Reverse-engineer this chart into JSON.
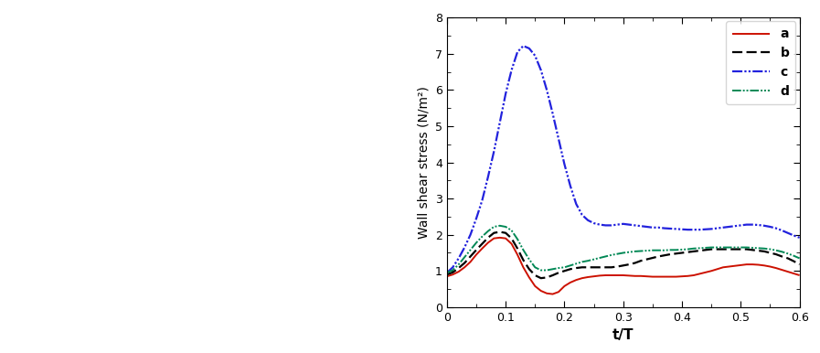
{
  "title": "",
  "xlabel": "t/T",
  "ylabel": "Wall shear stress (N/m²)",
  "xlim": [
    0,
    0.6
  ],
  "ylim": [
    0,
    8
  ],
  "xticks": [
    0,
    0.1,
    0.2,
    0.3,
    0.4,
    0.5,
    0.6
  ],
  "yticks": [
    0,
    1,
    2,
    3,
    4,
    5,
    6,
    7,
    8
  ],
  "series": {
    "a": {
      "color": "#cc1100",
      "linewidth": 1.4,
      "x": [
        0.0,
        0.01,
        0.02,
        0.03,
        0.04,
        0.05,
        0.06,
        0.07,
        0.08,
        0.09,
        0.1,
        0.11,
        0.12,
        0.13,
        0.14,
        0.15,
        0.16,
        0.17,
        0.18,
        0.19,
        0.2,
        0.21,
        0.22,
        0.23,
        0.24,
        0.25,
        0.26,
        0.27,
        0.28,
        0.29,
        0.3,
        0.31,
        0.32,
        0.33,
        0.34,
        0.35,
        0.36,
        0.37,
        0.38,
        0.39,
        0.4,
        0.41,
        0.42,
        0.43,
        0.44,
        0.45,
        0.46,
        0.47,
        0.48,
        0.49,
        0.5,
        0.51,
        0.52,
        0.53,
        0.54,
        0.55,
        0.56,
        0.57,
        0.58,
        0.59,
        0.6
      ],
      "y": [
        0.85,
        0.9,
        0.98,
        1.1,
        1.25,
        1.45,
        1.62,
        1.78,
        1.9,
        1.92,
        1.9,
        1.75,
        1.45,
        1.1,
        0.82,
        0.58,
        0.45,
        0.38,
        0.36,
        0.42,
        0.58,
        0.68,
        0.75,
        0.8,
        0.83,
        0.85,
        0.87,
        0.88,
        0.88,
        0.88,
        0.88,
        0.87,
        0.86,
        0.86,
        0.85,
        0.84,
        0.84,
        0.84,
        0.84,
        0.84,
        0.85,
        0.86,
        0.88,
        0.92,
        0.96,
        1.0,
        1.05,
        1.1,
        1.12,
        1.14,
        1.16,
        1.18,
        1.18,
        1.17,
        1.15,
        1.12,
        1.08,
        1.03,
        0.98,
        0.93,
        0.88
      ]
    },
    "b": {
      "color": "#000000",
      "linewidth": 1.6,
      "x": [
        0.0,
        0.01,
        0.02,
        0.03,
        0.04,
        0.05,
        0.06,
        0.07,
        0.08,
        0.09,
        0.1,
        0.11,
        0.12,
        0.13,
        0.14,
        0.15,
        0.16,
        0.17,
        0.18,
        0.19,
        0.2,
        0.21,
        0.22,
        0.23,
        0.24,
        0.25,
        0.26,
        0.27,
        0.28,
        0.29,
        0.3,
        0.31,
        0.32,
        0.33,
        0.34,
        0.35,
        0.36,
        0.37,
        0.38,
        0.39,
        0.4,
        0.41,
        0.42,
        0.43,
        0.44,
        0.45,
        0.46,
        0.47,
        0.48,
        0.49,
        0.5,
        0.51,
        0.52,
        0.53,
        0.54,
        0.55,
        0.56,
        0.57,
        0.58,
        0.59,
        0.6
      ],
      "y": [
        0.9,
        0.96,
        1.08,
        1.22,
        1.4,
        1.58,
        1.75,
        1.92,
        2.05,
        2.08,
        2.05,
        1.9,
        1.62,
        1.3,
        1.05,
        0.88,
        0.8,
        0.82,
        0.88,
        0.95,
        1.0,
        1.05,
        1.08,
        1.1,
        1.1,
        1.1,
        1.1,
        1.1,
        1.1,
        1.12,
        1.15,
        1.18,
        1.22,
        1.28,
        1.32,
        1.36,
        1.4,
        1.43,
        1.46,
        1.48,
        1.5,
        1.52,
        1.54,
        1.56,
        1.58,
        1.6,
        1.6,
        1.6,
        1.6,
        1.6,
        1.6,
        1.6,
        1.58,
        1.56,
        1.54,
        1.5,
        1.46,
        1.4,
        1.35,
        1.27,
        1.18
      ]
    },
    "c": {
      "color": "#2222dd",
      "linewidth": 1.6,
      "x": [
        0.0,
        0.01,
        0.02,
        0.03,
        0.04,
        0.05,
        0.06,
        0.07,
        0.08,
        0.09,
        0.1,
        0.11,
        0.12,
        0.13,
        0.14,
        0.15,
        0.16,
        0.17,
        0.18,
        0.19,
        0.2,
        0.21,
        0.22,
        0.23,
        0.24,
        0.25,
        0.26,
        0.27,
        0.28,
        0.29,
        0.3,
        0.31,
        0.32,
        0.33,
        0.34,
        0.35,
        0.36,
        0.37,
        0.38,
        0.39,
        0.4,
        0.41,
        0.42,
        0.43,
        0.44,
        0.45,
        0.46,
        0.47,
        0.48,
        0.49,
        0.5,
        0.51,
        0.52,
        0.53,
        0.54,
        0.55,
        0.56,
        0.57,
        0.58,
        0.59,
        0.6
      ],
      "y": [
        0.95,
        1.1,
        1.35,
        1.65,
        2.0,
        2.45,
        2.95,
        3.6,
        4.3,
        5.1,
        5.9,
        6.55,
        7.05,
        7.22,
        7.15,
        6.95,
        6.55,
        6.0,
        5.35,
        4.65,
        3.95,
        3.35,
        2.85,
        2.55,
        2.4,
        2.32,
        2.28,
        2.26,
        2.26,
        2.28,
        2.3,
        2.28,
        2.26,
        2.24,
        2.22,
        2.2,
        2.2,
        2.18,
        2.17,
        2.16,
        2.15,
        2.14,
        2.14,
        2.14,
        2.15,
        2.16,
        2.18,
        2.2,
        2.22,
        2.24,
        2.26,
        2.28,
        2.28,
        2.27,
        2.25,
        2.22,
        2.18,
        2.12,
        2.05,
        1.98,
        1.92
      ]
    },
    "d": {
      "color": "#008855",
      "linewidth": 1.4,
      "x": [
        0.0,
        0.01,
        0.02,
        0.03,
        0.04,
        0.05,
        0.06,
        0.07,
        0.08,
        0.09,
        0.1,
        0.11,
        0.12,
        0.13,
        0.14,
        0.15,
        0.16,
        0.17,
        0.18,
        0.19,
        0.2,
        0.21,
        0.22,
        0.23,
        0.24,
        0.25,
        0.26,
        0.27,
        0.28,
        0.29,
        0.3,
        0.31,
        0.32,
        0.33,
        0.34,
        0.35,
        0.36,
        0.37,
        0.38,
        0.39,
        0.4,
        0.41,
        0.42,
        0.43,
        0.44,
        0.45,
        0.46,
        0.47,
        0.48,
        0.49,
        0.5,
        0.51,
        0.52,
        0.53,
        0.54,
        0.55,
        0.56,
        0.57,
        0.58,
        0.59,
        0.6
      ],
      "y": [
        0.95,
        1.02,
        1.18,
        1.38,
        1.58,
        1.78,
        1.95,
        2.1,
        2.22,
        2.25,
        2.22,
        2.12,
        1.88,
        1.58,
        1.32,
        1.1,
        1.02,
        1.02,
        1.05,
        1.08,
        1.1,
        1.15,
        1.2,
        1.25,
        1.28,
        1.32,
        1.36,
        1.4,
        1.44,
        1.47,
        1.5,
        1.52,
        1.54,
        1.55,
        1.56,
        1.57,
        1.57,
        1.57,
        1.58,
        1.58,
        1.59,
        1.6,
        1.62,
        1.63,
        1.64,
        1.65,
        1.65,
        1.65,
        1.65,
        1.65,
        1.65,
        1.65,
        1.64,
        1.63,
        1.62,
        1.6,
        1.57,
        1.53,
        1.48,
        1.42,
        1.35
      ]
    }
  },
  "legend_labels": [
    "a",
    "b",
    "c",
    "d"
  ],
  "legend_colors": [
    "#cc1100",
    "#000000",
    "#2222dd",
    "#008855"
  ]
}
